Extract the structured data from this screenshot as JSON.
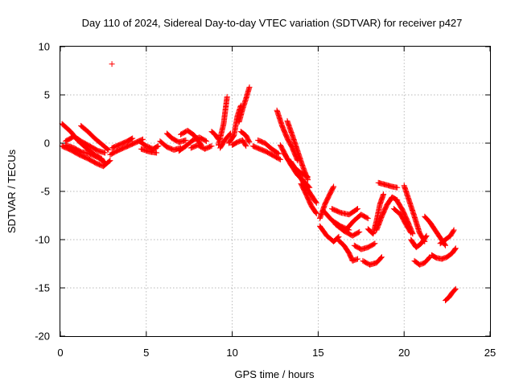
{
  "chart_data": {
    "type": "scatter",
    "title": "Day 110 of 2024, Sidereal Day-to-day VTEC variation (SDTVAR) for receiver p427",
    "xlabel": "GPS time / hours",
    "ylabel": "SDTVAR / TECUs",
    "xlim": [
      0,
      25
    ],
    "ylim": [
      -20,
      10
    ],
    "xticks": [
      0,
      5,
      10,
      15,
      20,
      25
    ],
    "yticks": [
      -20,
      -15,
      -10,
      -5,
      0,
      5,
      10
    ],
    "xtick_labels": [
      "0",
      "5",
      "10",
      "15",
      "20",
      "25"
    ],
    "ytick_labels": [
      "-20",
      "-15",
      "-10",
      "-5",
      "0",
      "5",
      "10"
    ],
    "grid": true,
    "marker": "+",
    "color": "#ff0000",
    "series": [
      {
        "name": "SDTVAR",
        "tracks": [
          [
            [
              0.1,
              2.0
            ],
            [
              0.6,
              1.2
            ],
            [
              1.0,
              0.3
            ],
            [
              1.5,
              -0.5
            ],
            [
              2.0,
              -1.2
            ],
            [
              2.4,
              -1.6
            ]
          ],
          [
            [
              0.1,
              -0.3
            ],
            [
              0.6,
              -0.7
            ],
            [
              1.1,
              -1.2
            ],
            [
              1.6,
              -1.6
            ],
            [
              2.1,
              -2.1
            ],
            [
              2.5,
              -2.4
            ],
            [
              2.9,
              -1.8
            ]
          ],
          [
            [
              0.3,
              0.2
            ],
            [
              0.8,
              0.7
            ],
            [
              1.2,
              0.2
            ],
            [
              1.7,
              -0.3
            ],
            [
              2.2,
              -0.8
            ],
            [
              2.6,
              -1.0
            ]
          ],
          [
            [
              1.2,
              1.8
            ],
            [
              1.6,
              1.2
            ],
            [
              2.0,
              0.5
            ],
            [
              2.4,
              -0.1
            ],
            [
              2.8,
              -0.7
            ]
          ],
          [
            [
              0.3,
              -0.2
            ],
            [
              0.8,
              -0.5
            ],
            [
              1.2,
              -0.9
            ],
            [
              1.7,
              -1.1
            ],
            [
              2.2,
              -1.5
            ],
            [
              2.6,
              -2.0
            ]
          ],
          [
            [
              2.9,
              -1.2
            ],
            [
              3.3,
              -0.8
            ],
            [
              3.8,
              -0.4
            ],
            [
              4.3,
              0.0
            ],
            [
              4.8,
              0.4
            ]
          ],
          [
            [
              3.0,
              -0.5
            ],
            [
              3.4,
              -0.2
            ],
            [
              3.9,
              0.2
            ],
            [
              4.2,
              0.5
            ]
          ],
          [
            [
              4.6,
              0.2
            ],
            [
              5.0,
              -0.3
            ],
            [
              5.4,
              -0.6
            ],
            [
              5.7,
              -0.3
            ]
          ],
          [
            [
              4.7,
              -0.6
            ],
            [
              5.2,
              -0.9
            ],
            [
              5.6,
              -1.0
            ]
          ],
          [
            [
              5.8,
              0.2
            ],
            [
              6.2,
              -0.4
            ],
            [
              6.6,
              -0.7
            ],
            [
              7.0,
              -0.5
            ]
          ],
          [
            [
              6.2,
              1.0
            ],
            [
              6.5,
              0.5
            ],
            [
              6.9,
              0.1
            ],
            [
              7.3,
              0.3
            ]
          ],
          [
            [
              6.9,
              -0.8
            ],
            [
              7.3,
              -0.3
            ],
            [
              7.7,
              0.3
            ],
            [
              8.1,
              0.6
            ],
            [
              8.5,
              0.2
            ]
          ],
          [
            [
              7.0,
              0.9
            ],
            [
              7.4,
              1.3
            ],
            [
              7.8,
              0.8
            ],
            [
              8.2,
              -0.2
            ]
          ],
          [
            [
              7.6,
              -0.5
            ],
            [
              8.0,
              -0.2
            ],
            [
              8.4,
              -0.6
            ],
            [
              8.8,
              -0.3
            ]
          ],
          [
            [
              8.8,
              1.2
            ],
            [
              9.0,
              0.9
            ],
            [
              9.2,
              0.4
            ]
          ],
          [
            [
              9.2,
              -0.2
            ],
            [
              9.5,
              2.0
            ],
            [
              9.7,
              4.8
            ]
          ],
          [
            [
              9.3,
              -0.5
            ],
            [
              9.6,
              0.4
            ],
            [
              9.9,
              1.0
            ]
          ],
          [
            [
              9.8,
              0.0
            ],
            [
              10.1,
              0.8
            ],
            [
              10.3,
              2.8
            ],
            [
              10.5,
              3.9
            ]
          ],
          [
            [
              10.0,
              -0.2
            ],
            [
              10.3,
              0.1
            ],
            [
              10.6,
              0.3
            ],
            [
              10.8,
              -0.3
            ]
          ],
          [
            [
              10.4,
              2.2
            ],
            [
              10.6,
              3.5
            ],
            [
              10.8,
              4.6
            ],
            [
              11.0,
              5.8
            ]
          ],
          [
            [
              10.5,
              1.2
            ],
            [
              10.8,
              0.8
            ],
            [
              11.0,
              0.1
            ]
          ],
          [
            [
              11.2,
              -0.3
            ],
            [
              11.6,
              -0.6
            ],
            [
              12.0,
              -0.9
            ],
            [
              12.4,
              -1.3
            ],
            [
              12.8,
              -1.7
            ]
          ],
          [
            [
              11.5,
              0.3
            ],
            [
              11.9,
              0.0
            ],
            [
              12.3,
              -0.6
            ],
            [
              12.7,
              -1.1
            ]
          ],
          [
            [
              12.6,
              3.4
            ],
            [
              12.9,
              1.8
            ],
            [
              13.2,
              0.5
            ],
            [
              13.5,
              -0.5
            ],
            [
              13.8,
              -1.8
            ]
          ],
          [
            [
              12.8,
              -0.2
            ],
            [
              13.2,
              -1.6
            ],
            [
              13.6,
              -2.5
            ],
            [
              14.0,
              -3.1
            ],
            [
              14.4,
              -3.5
            ]
          ],
          [
            [
              13.0,
              -1.0
            ],
            [
              13.4,
              -2.2
            ],
            [
              13.8,
              -3.3
            ],
            [
              14.2,
              -4.0
            ],
            [
              14.5,
              -4.6
            ]
          ],
          [
            [
              13.2,
              2.3
            ],
            [
              13.5,
              0.8
            ],
            [
              13.8,
              -0.8
            ],
            [
              14.1,
              -2.4
            ],
            [
              14.4,
              -3.8
            ]
          ],
          [
            [
              13.4,
              -1.9
            ],
            [
              13.8,
              -3.0
            ],
            [
              14.2,
              -4.3
            ],
            [
              14.6,
              -5.4
            ],
            [
              14.9,
              -6.2
            ]
          ],
          [
            [
              14.0,
              -4.2
            ],
            [
              14.3,
              -5.3
            ],
            [
              14.6,
              -6.5
            ],
            [
              14.9,
              -7.3
            ]
          ],
          [
            [
              15.1,
              -7.8
            ],
            [
              15.4,
              -6.3
            ],
            [
              15.7,
              -5.2
            ],
            [
              15.9,
              -4.5
            ]
          ],
          [
            [
              15.1,
              -8.6
            ],
            [
              15.5,
              -9.6
            ],
            [
              15.9,
              -10.2
            ],
            [
              16.2,
              -9.7
            ]
          ],
          [
            [
              15.3,
              -7.0
            ],
            [
              15.8,
              -8.0
            ],
            [
              16.3,
              -8.6
            ],
            [
              16.8,
              -9.0
            ]
          ],
          [
            [
              15.8,
              -6.8
            ],
            [
              16.3,
              -7.2
            ],
            [
              16.8,
              -7.4
            ],
            [
              17.3,
              -6.8
            ]
          ],
          [
            [
              16.0,
              -8.4
            ],
            [
              16.5,
              -9.1
            ],
            [
              17.0,
              -9.6
            ],
            [
              17.4,
              -9.2
            ]
          ],
          [
            [
              16.2,
              -10.1
            ],
            [
              16.5,
              -10.6
            ],
            [
              16.8,
              -11.4
            ],
            [
              17.0,
              -12.2
            ],
            [
              17.3,
              -12.0
            ]
          ],
          [
            [
              16.7,
              -8.8
            ],
            [
              17.1,
              -8.0
            ],
            [
              17.5,
              -7.4
            ],
            [
              17.9,
              -7.8
            ]
          ],
          [
            [
              17.1,
              -10.6
            ],
            [
              17.5,
              -11.0
            ],
            [
              17.9,
              -10.8
            ],
            [
              18.3,
              -10.4
            ]
          ],
          [
            [
              17.6,
              -12.2
            ],
            [
              18.0,
              -12.6
            ],
            [
              18.4,
              -12.4
            ],
            [
              18.7,
              -11.8
            ]
          ],
          [
            [
              17.9,
              -8.9
            ],
            [
              18.2,
              -9.4
            ],
            [
              18.4,
              -8.0
            ],
            [
              18.6,
              -6.3
            ],
            [
              18.8,
              -5.3
            ]
          ],
          [
            [
              18.4,
              -9.0
            ],
            [
              18.7,
              -7.6
            ],
            [
              19.0,
              -6.4
            ],
            [
              19.3,
              -5.6
            ],
            [
              19.6,
              -5.9
            ]
          ],
          [
            [
              18.5,
              -4.1
            ],
            [
              18.9,
              -4.3
            ],
            [
              19.3,
              -4.5
            ],
            [
              19.6,
              -4.6
            ]
          ],
          [
            [
              19.4,
              -6.8
            ],
            [
              19.8,
              -7.4
            ],
            [
              20.1,
              -8.4
            ],
            [
              20.4,
              -9.3
            ]
          ],
          [
            [
              19.6,
              -6.0
            ],
            [
              19.9,
              -6.9
            ],
            [
              20.2,
              -8.1
            ],
            [
              20.5,
              -9.4
            ]
          ],
          [
            [
              20.0,
              -4.4
            ],
            [
              20.3,
              -6.0
            ],
            [
              20.6,
              -7.6
            ],
            [
              20.9,
              -9.3
            ],
            [
              21.2,
              -10.2
            ]
          ],
          [
            [
              20.4,
              -10.0
            ],
            [
              20.7,
              -10.8
            ],
            [
              21.0,
              -10.4
            ],
            [
              21.3,
              -9.6
            ]
          ],
          [
            [
              20.6,
              -12.2
            ],
            [
              20.9,
              -12.6
            ],
            [
              21.2,
              -12.4
            ],
            [
              21.5,
              -11.8
            ]
          ],
          [
            [
              21.2,
              -7.6
            ],
            [
              21.5,
              -8.2
            ],
            [
              21.8,
              -9.0
            ],
            [
              22.1,
              -9.8
            ],
            [
              22.4,
              -10.6
            ]
          ],
          [
            [
              21.6,
              -11.6
            ],
            [
              21.9,
              -11.9
            ],
            [
              22.2,
              -12.0
            ]
          ],
          [
            [
              22.1,
              -10.4
            ],
            [
              22.4,
              -10.0
            ],
            [
              22.7,
              -9.6
            ],
            [
              22.9,
              -9.0
            ]
          ],
          [
            [
              22.2,
              -12.0
            ],
            [
              22.5,
              -11.8
            ],
            [
              22.8,
              -11.4
            ],
            [
              23.0,
              -10.9
            ]
          ],
          [
            [
              22.4,
              -16.3
            ],
            [
              22.6,
              -16.0
            ],
            [
              22.8,
              -15.5
            ],
            [
              23.0,
              -15.1
            ]
          ],
          [
            [
              3.0,
              8.2
            ],
            [
              3.0,
              8.2
            ]
          ]
        ]
      }
    ]
  }
}
